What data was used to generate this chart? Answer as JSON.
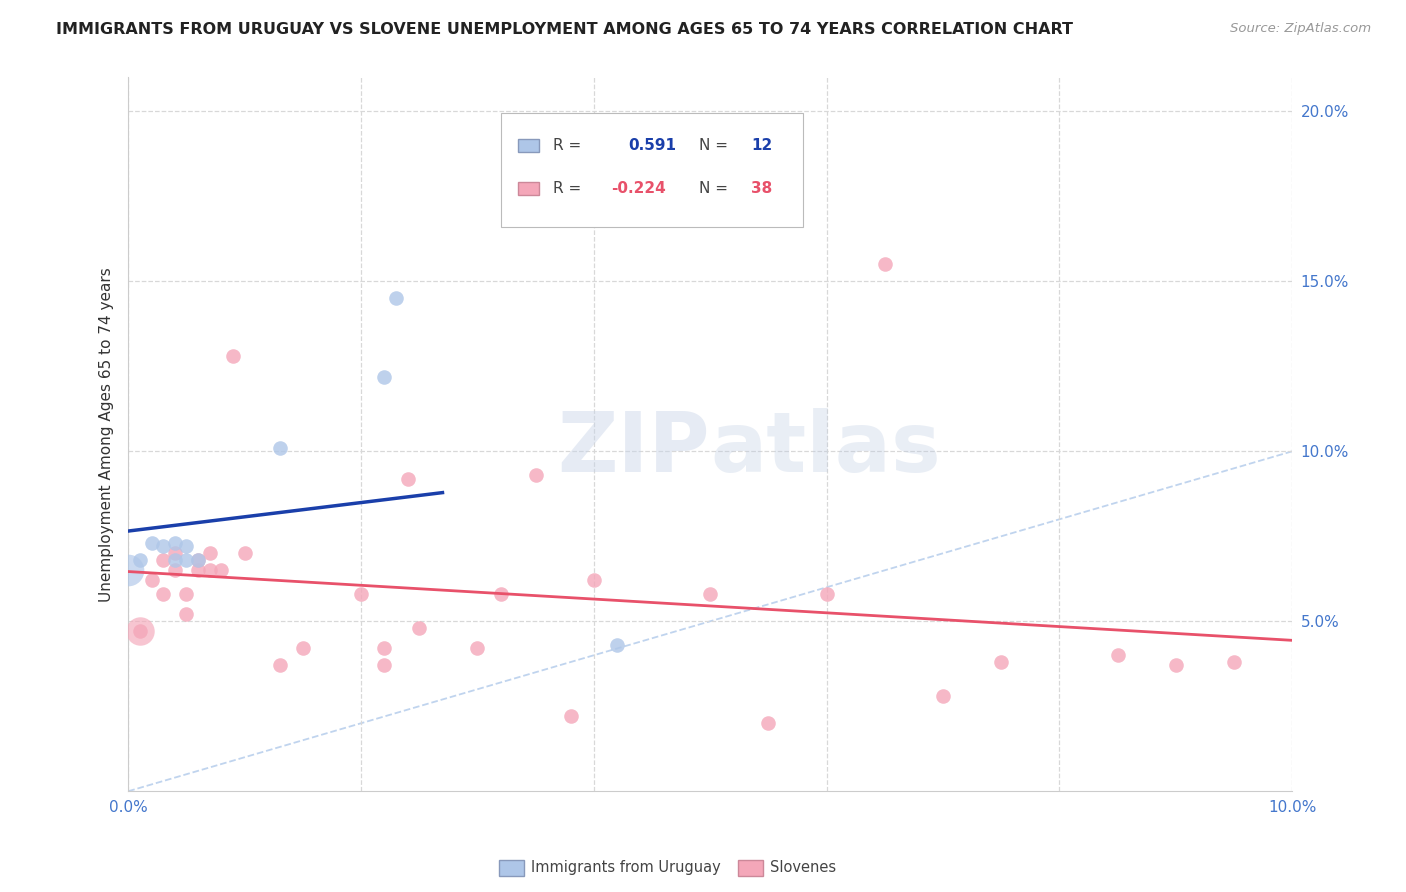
{
  "title": "IMMIGRANTS FROM URUGUAY VS SLOVENE UNEMPLOYMENT AMONG AGES 65 TO 74 YEARS CORRELATION CHART",
  "source": "Source: ZipAtlas.com",
  "ylabel": "Unemployment Among Ages 65 to 74 years",
  "xlim": [
    0.0,
    0.1
  ],
  "ylim": [
    0.0,
    0.21
  ],
  "xticks": [
    0.0,
    0.02,
    0.04,
    0.06,
    0.08,
    0.1
  ],
  "yticks": [
    0.05,
    0.1,
    0.15,
    0.2
  ],
  "xtick_labels": [
    "0.0%",
    "",
    "",
    "",
    "",
    "10.0%"
  ],
  "ytick_labels": [
    "5.0%",
    "10.0%",
    "15.0%",
    "20.0%"
  ],
  "background_color": "#ffffff",
  "grid_color": "#d8d8d8",
  "uruguay_color": "#aec6e8",
  "slovene_color": "#f4a7b9",
  "uruguay_line_color": "#1a3faa",
  "slovene_line_color": "#e8516a",
  "diagonal_color": "#c0d4ee",
  "R_uruguay": "0.591",
  "N_uruguay": "12",
  "R_slovene": "-0.224",
  "N_slovene": "38",
  "legend_labels": [
    "Immigrants from Uruguay",
    "Slovenes"
  ],
  "uruguay_scatter_x": [
    0.001,
    0.002,
    0.003,
    0.004,
    0.004,
    0.005,
    0.005,
    0.006,
    0.013,
    0.022,
    0.023,
    0.042
  ],
  "uruguay_scatter_y": [
    0.068,
    0.073,
    0.072,
    0.068,
    0.073,
    0.068,
    0.072,
    0.068,
    0.101,
    0.122,
    0.145,
    0.043
  ],
  "uruguay_large_x": [
    0.0
  ],
  "uruguay_large_y": [
    0.065
  ],
  "slovene_scatter_x": [
    0.001,
    0.002,
    0.003,
    0.003,
    0.004,
    0.004,
    0.005,
    0.005,
    0.006,
    0.006,
    0.007,
    0.007,
    0.008,
    0.009,
    0.01,
    0.013,
    0.015,
    0.02,
    0.022,
    0.022,
    0.024,
    0.025,
    0.03,
    0.032,
    0.035,
    0.038,
    0.04,
    0.05,
    0.055,
    0.06,
    0.065,
    0.07,
    0.075,
    0.085,
    0.09,
    0.095
  ],
  "slovene_scatter_y": [
    0.047,
    0.062,
    0.058,
    0.068,
    0.07,
    0.065,
    0.058,
    0.052,
    0.068,
    0.065,
    0.065,
    0.07,
    0.065,
    0.128,
    0.07,
    0.037,
    0.042,
    0.058,
    0.042,
    0.037,
    0.092,
    0.048,
    0.042,
    0.058,
    0.093,
    0.022,
    0.062,
    0.058,
    0.02,
    0.058,
    0.155,
    0.028,
    0.038,
    0.04,
    0.037,
    0.038
  ],
  "slovene_large_x": [
    0.001
  ],
  "slovene_large_y": [
    0.047
  ]
}
